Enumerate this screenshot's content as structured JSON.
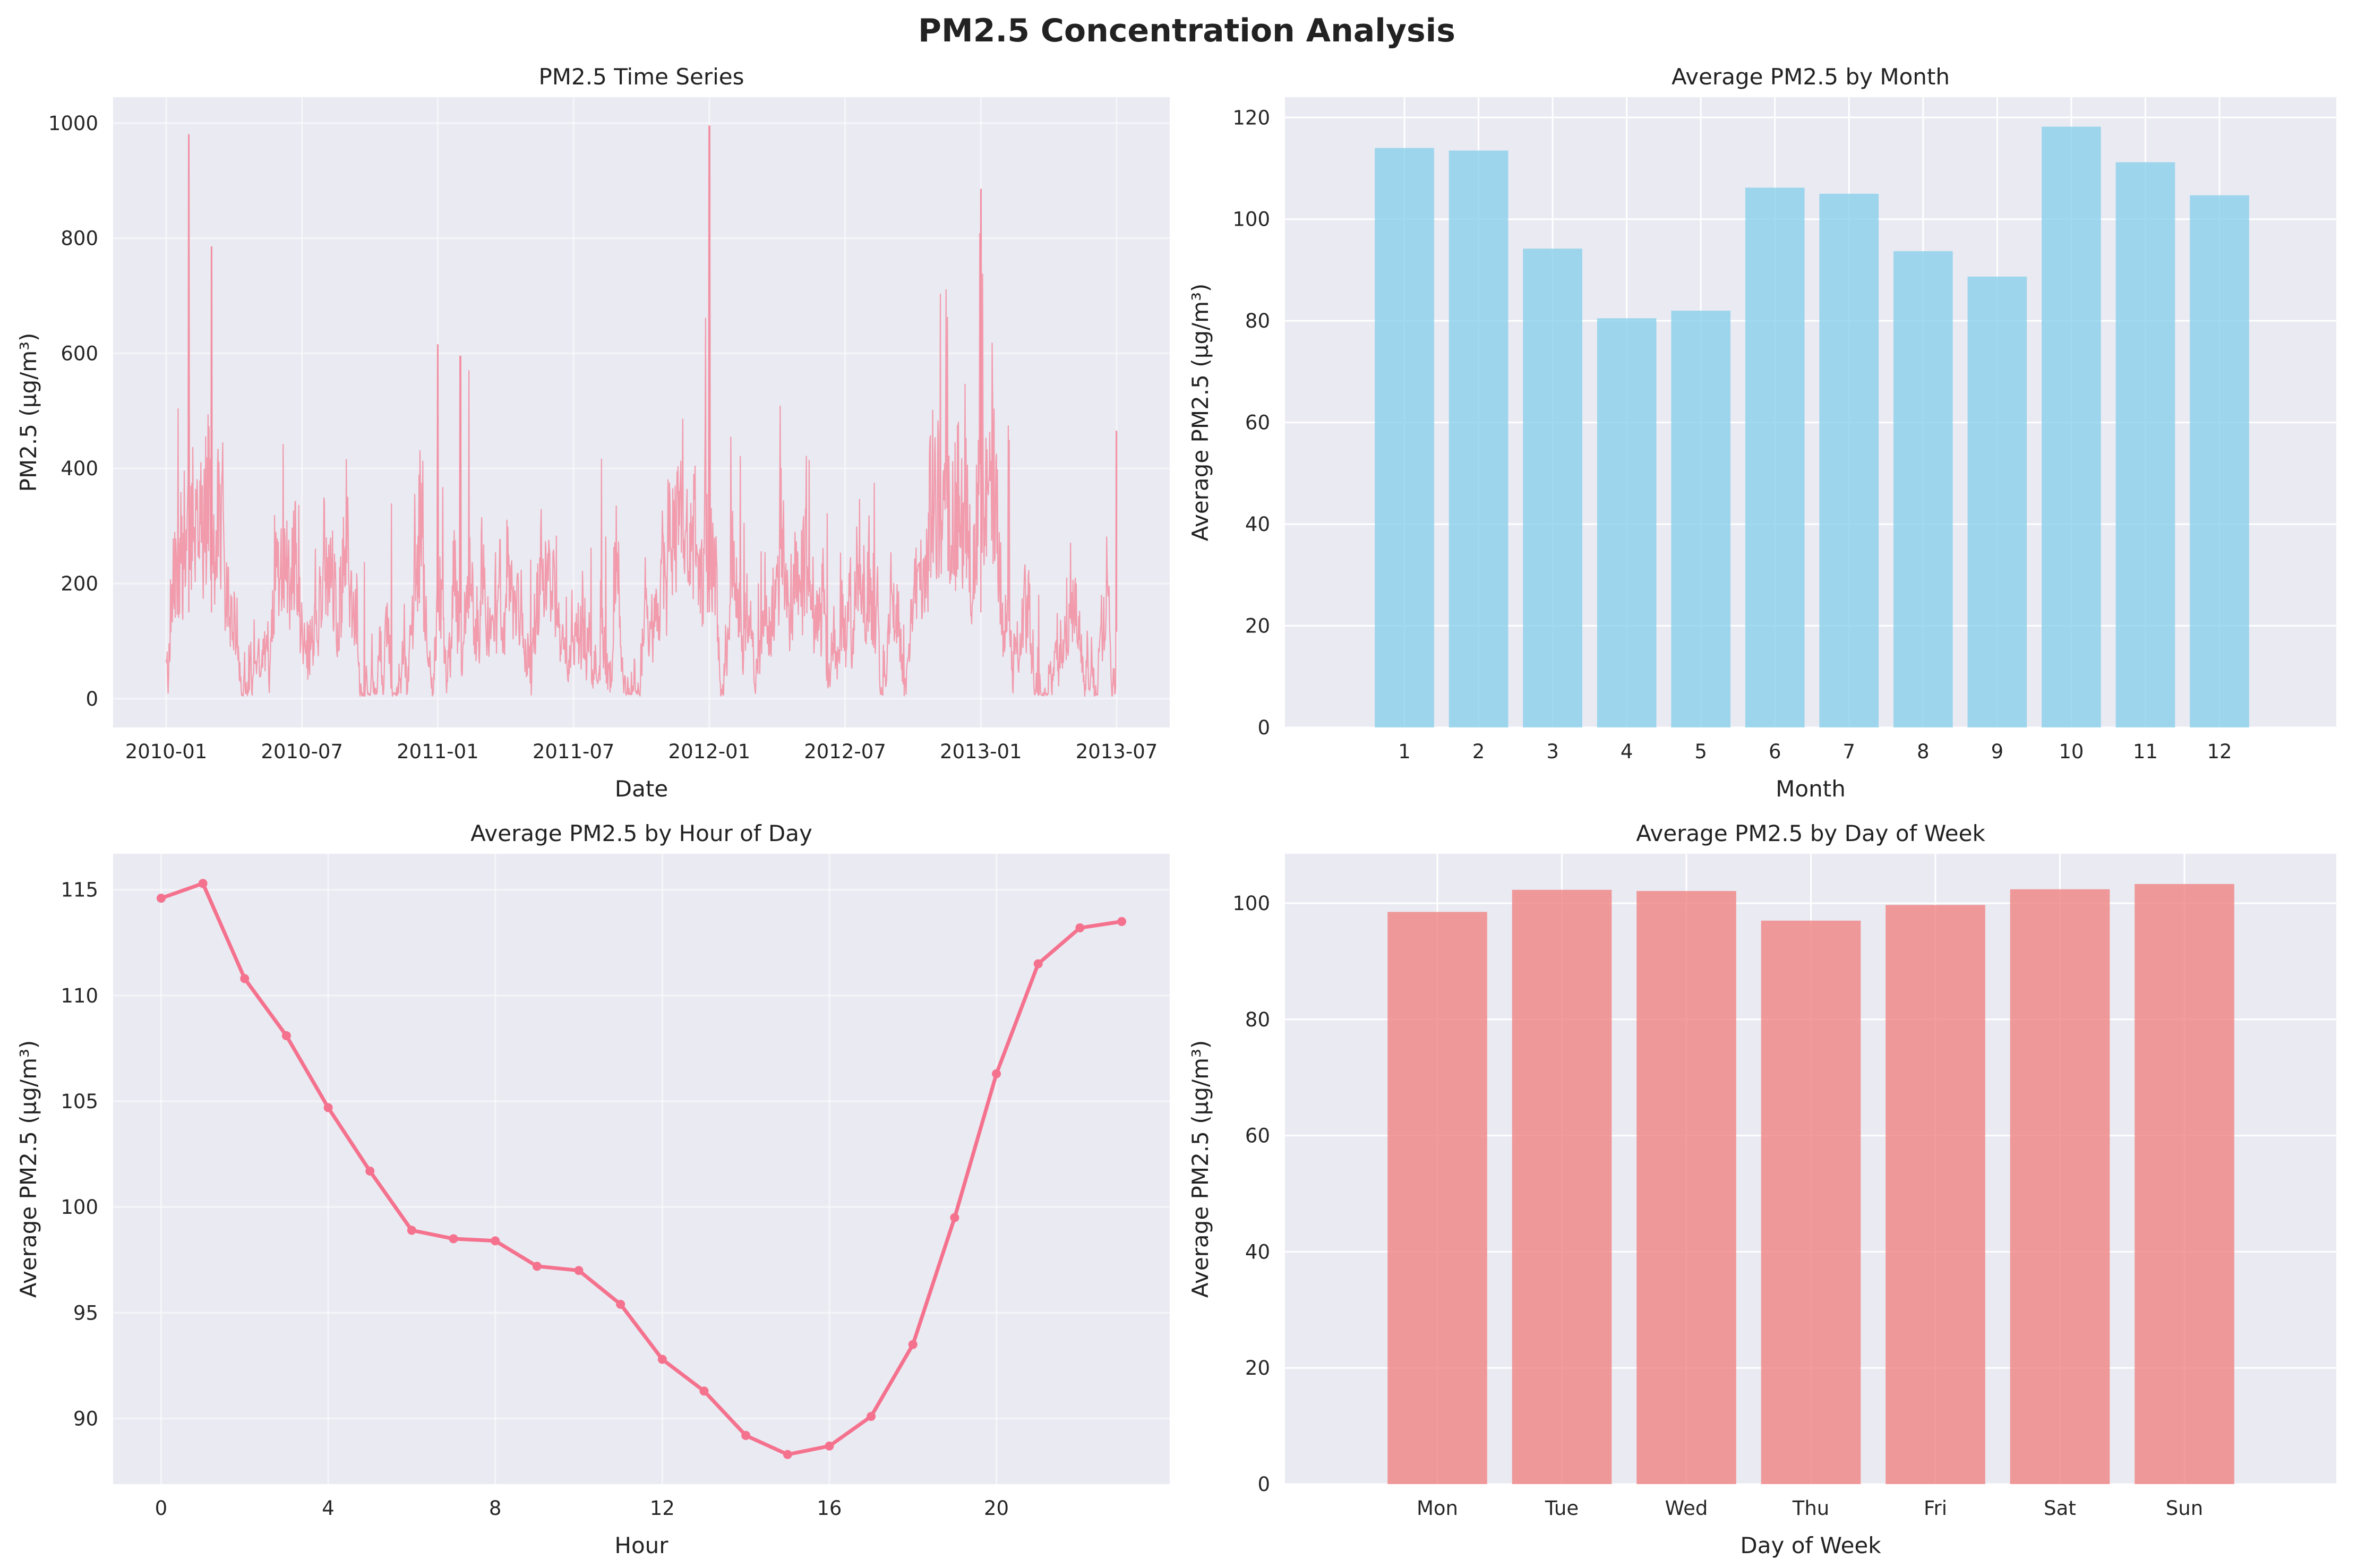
{
  "figure": {
    "title": "PM2.5 Concentration Analysis",
    "background": "#ffffff",
    "axes_background": "#eaeaf2",
    "grid_color": "#ffffff"
  },
  "chart_data": [
    {
      "id": "timeseries",
      "type": "line",
      "title": "PM2.5 Time Series",
      "xlabel": "Date",
      "ylabel": "PM2.5 (µg/m³)",
      "color": "#f28da0",
      "x_ticks": [
        "2010-01",
        "2010-07",
        "2011-01",
        "2011-07",
        "2012-01",
        "2012-07",
        "2013-01",
        "2013-07"
      ],
      "y_ticks": [
        0,
        200,
        400,
        600,
        800,
        1000
      ],
      "ylim": [
        -50,
        1045
      ],
      "x_range": [
        "2010-01",
        "2013-07"
      ],
      "notable_peaks": [
        {
          "x": "2010-02",
          "y": 980
        },
        {
          "x": "2010-03",
          "y": 785
        },
        {
          "x": "2011-01",
          "y": 615
        },
        {
          "x": "2011-02",
          "y": 595
        },
        {
          "x": "2012-01",
          "y": 995
        },
        {
          "x": "2013-01",
          "y": 885
        },
        {
          "x": "2013-07",
          "y": 465
        }
      ],
      "grid": true
    },
    {
      "id": "monthly",
      "type": "bar",
      "title": "Average PM2.5 by Month",
      "xlabel": "Month",
      "ylabel": "Average PM2.5 (µg/m³)",
      "color": "#87ceeb",
      "categories": [
        "1",
        "2",
        "3",
        "4",
        "5",
        "6",
        "7",
        "8",
        "9",
        "10",
        "11",
        "12"
      ],
      "values": [
        114.0,
        113.5,
        94.2,
        80.5,
        82.0,
        106.2,
        105.0,
        93.7,
        88.7,
        118.2,
        111.2,
        104.7
      ],
      "y_ticks": [
        0,
        20,
        40,
        60,
        80,
        100,
        120
      ],
      "ylim": [
        0,
        124
      ],
      "grid": true
    },
    {
      "id": "hourly",
      "type": "line",
      "title": "Average PM2.5 by Hour of Day",
      "xlabel": "Hour",
      "ylabel": "Average PM2.5 (µg/m³)",
      "color": "#f4728e",
      "x": [
        0,
        1,
        2,
        3,
        4,
        5,
        6,
        7,
        8,
        9,
        10,
        11,
        12,
        13,
        14,
        15,
        16,
        17,
        18,
        19,
        20,
        21,
        22,
        23
      ],
      "values": [
        114.6,
        115.3,
        110.8,
        108.1,
        104.7,
        101.7,
        98.9,
        98.5,
        98.4,
        97.2,
        97.0,
        95.4,
        92.8,
        91.3,
        89.2,
        88.3,
        88.7,
        90.1,
        93.5,
        99.5,
        106.3,
        111.5,
        113.2,
        113.5
      ],
      "x_ticks": [
        0,
        4,
        8,
        12,
        16,
        20
      ],
      "y_ticks": [
        90,
        95,
        100,
        105,
        110,
        115
      ],
      "xlim": [
        -1.15,
        24.15
      ],
      "ylim": [
        86.9,
        116.7
      ],
      "grid": true
    },
    {
      "id": "weekday",
      "type": "bar",
      "title": "Average PM2.5 by Day of Week",
      "xlabel": "Day of Week",
      "ylabel": "Average PM2.5 (µg/m³)",
      "color": "#f08080",
      "categories": [
        "Mon",
        "Tue",
        "Wed",
        "Thu",
        "Fri",
        "Sat",
        "Sun"
      ],
      "values": [
        98.5,
        102.3,
        102.1,
        97.0,
        99.7,
        102.4,
        103.3
      ],
      "y_ticks": [
        0,
        20,
        40,
        60,
        80,
        100
      ],
      "ylim": [
        0,
        108.5
      ],
      "grid": true
    }
  ]
}
